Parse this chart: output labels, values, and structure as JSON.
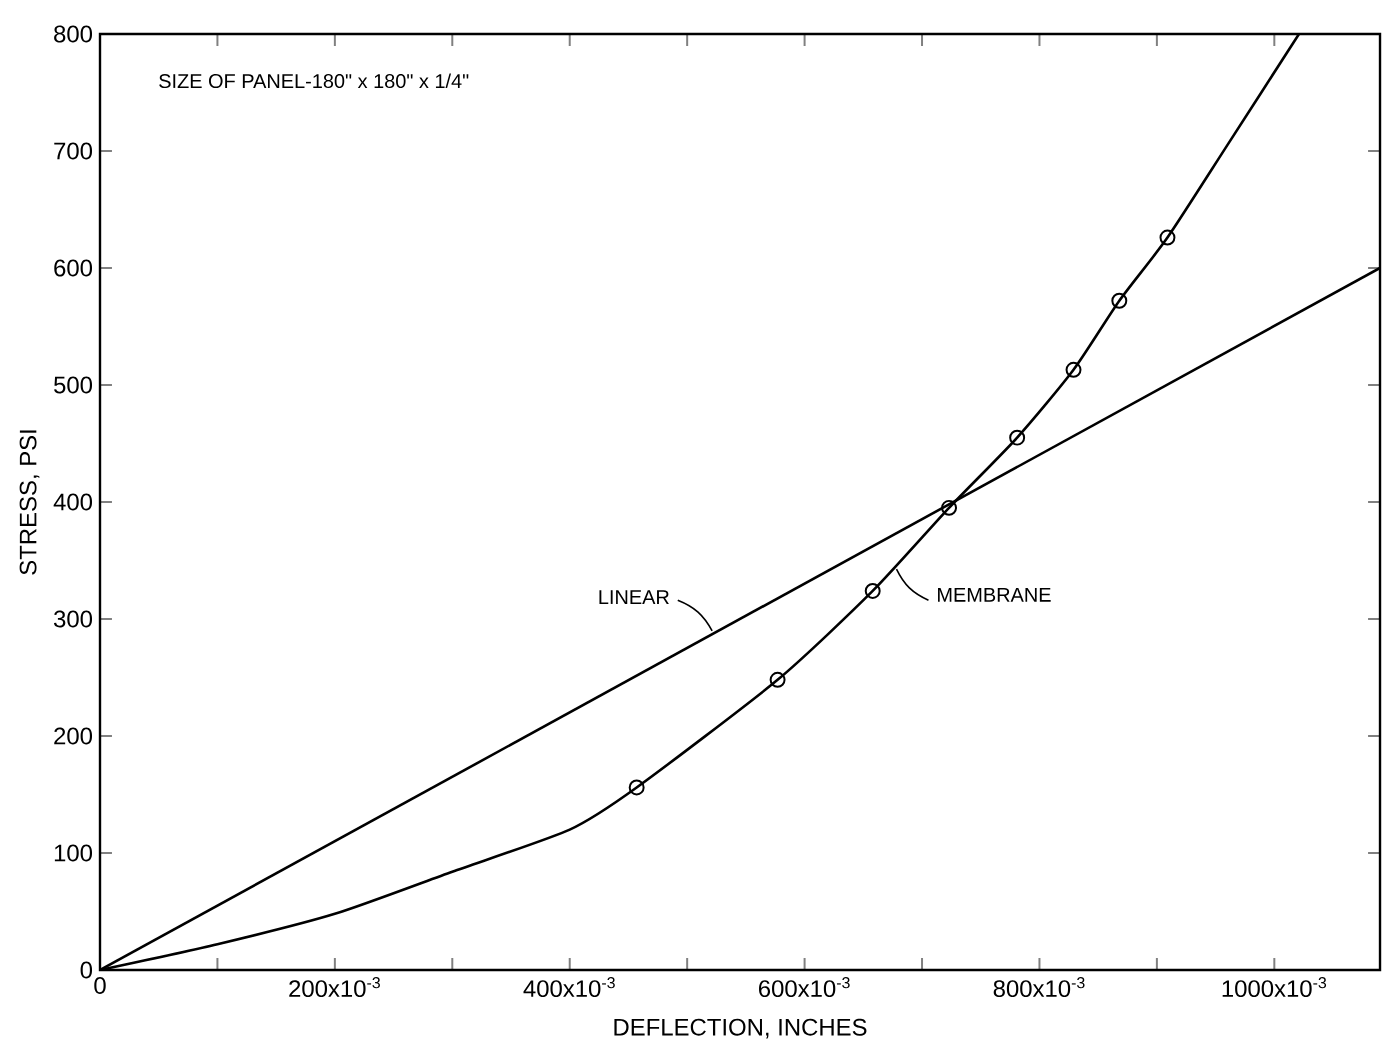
{
  "chart_data": {
    "type": "line",
    "xlabel": "DEFLECTION, INCHES",
    "ylabel": "STRESS, PSI",
    "annotations": [
      "SIZE OF PANEL-180\" x 180\" x 1/4\""
    ],
    "series": [
      {
        "name": "LINEAR",
        "color": "#000000",
        "x": [
          0,
          1.09
        ],
        "values": [
          0,
          600
        ],
        "marker": "none"
      },
      {
        "name": "MEMBRANE",
        "color": "#000000",
        "x": [
          0,
          0.1,
          0.2,
          0.3,
          0.4,
          0.457,
          0.577,
          0.658,
          0.723,
          0.781,
          0.829,
          0.868,
          0.909,
          0.96,
          1.021
        ],
        "values": [
          0,
          22,
          48,
          84,
          120,
          156,
          248,
          324,
          395,
          455,
          513,
          572,
          626,
          705,
          800
        ],
        "marker": "none"
      },
      {
        "type": "scatter",
        "color": "#000000",
        "x": [
          0.457,
          0.577,
          0.658,
          0.723,
          0.781,
          0.829,
          0.868,
          0.909
        ],
        "values": [
          156,
          248,
          324,
          395,
          455,
          513,
          572,
          626
        ],
        "marker": "circle"
      }
    ],
    "xlim": [
      0,
      1.09
    ],
    "ylim": [
      0,
      800
    ],
    "xticks": [
      0,
      {
        "value": 0.1,
        "label": null
      },
      {
        "value": 0.2,
        "label": "200x10$^{-3}$"
      },
      {
        "value": 0.3,
        "label": null
      },
      {
        "value": 0.4,
        "label": "400x10$^{-3}$"
      },
      {
        "value": 0.5,
        "label": null
      },
      {
        "value": 0.6,
        "label": "600x10$^{-3}$"
      },
      {
        "value": 0.7,
        "label": null
      },
      {
        "value": 0.8,
        "label": "800x10$^{-3}$"
      },
      {
        "value": 0.9,
        "label": null
      },
      {
        "value": 1.0,
        "label": "1000x10$^{-3}$"
      }
    ],
    "yticks": [
      0,
      100,
      200,
      300,
      400,
      500,
      600,
      700,
      800
    ],
    "grid": false,
    "line_style": "solid"
  }
}
